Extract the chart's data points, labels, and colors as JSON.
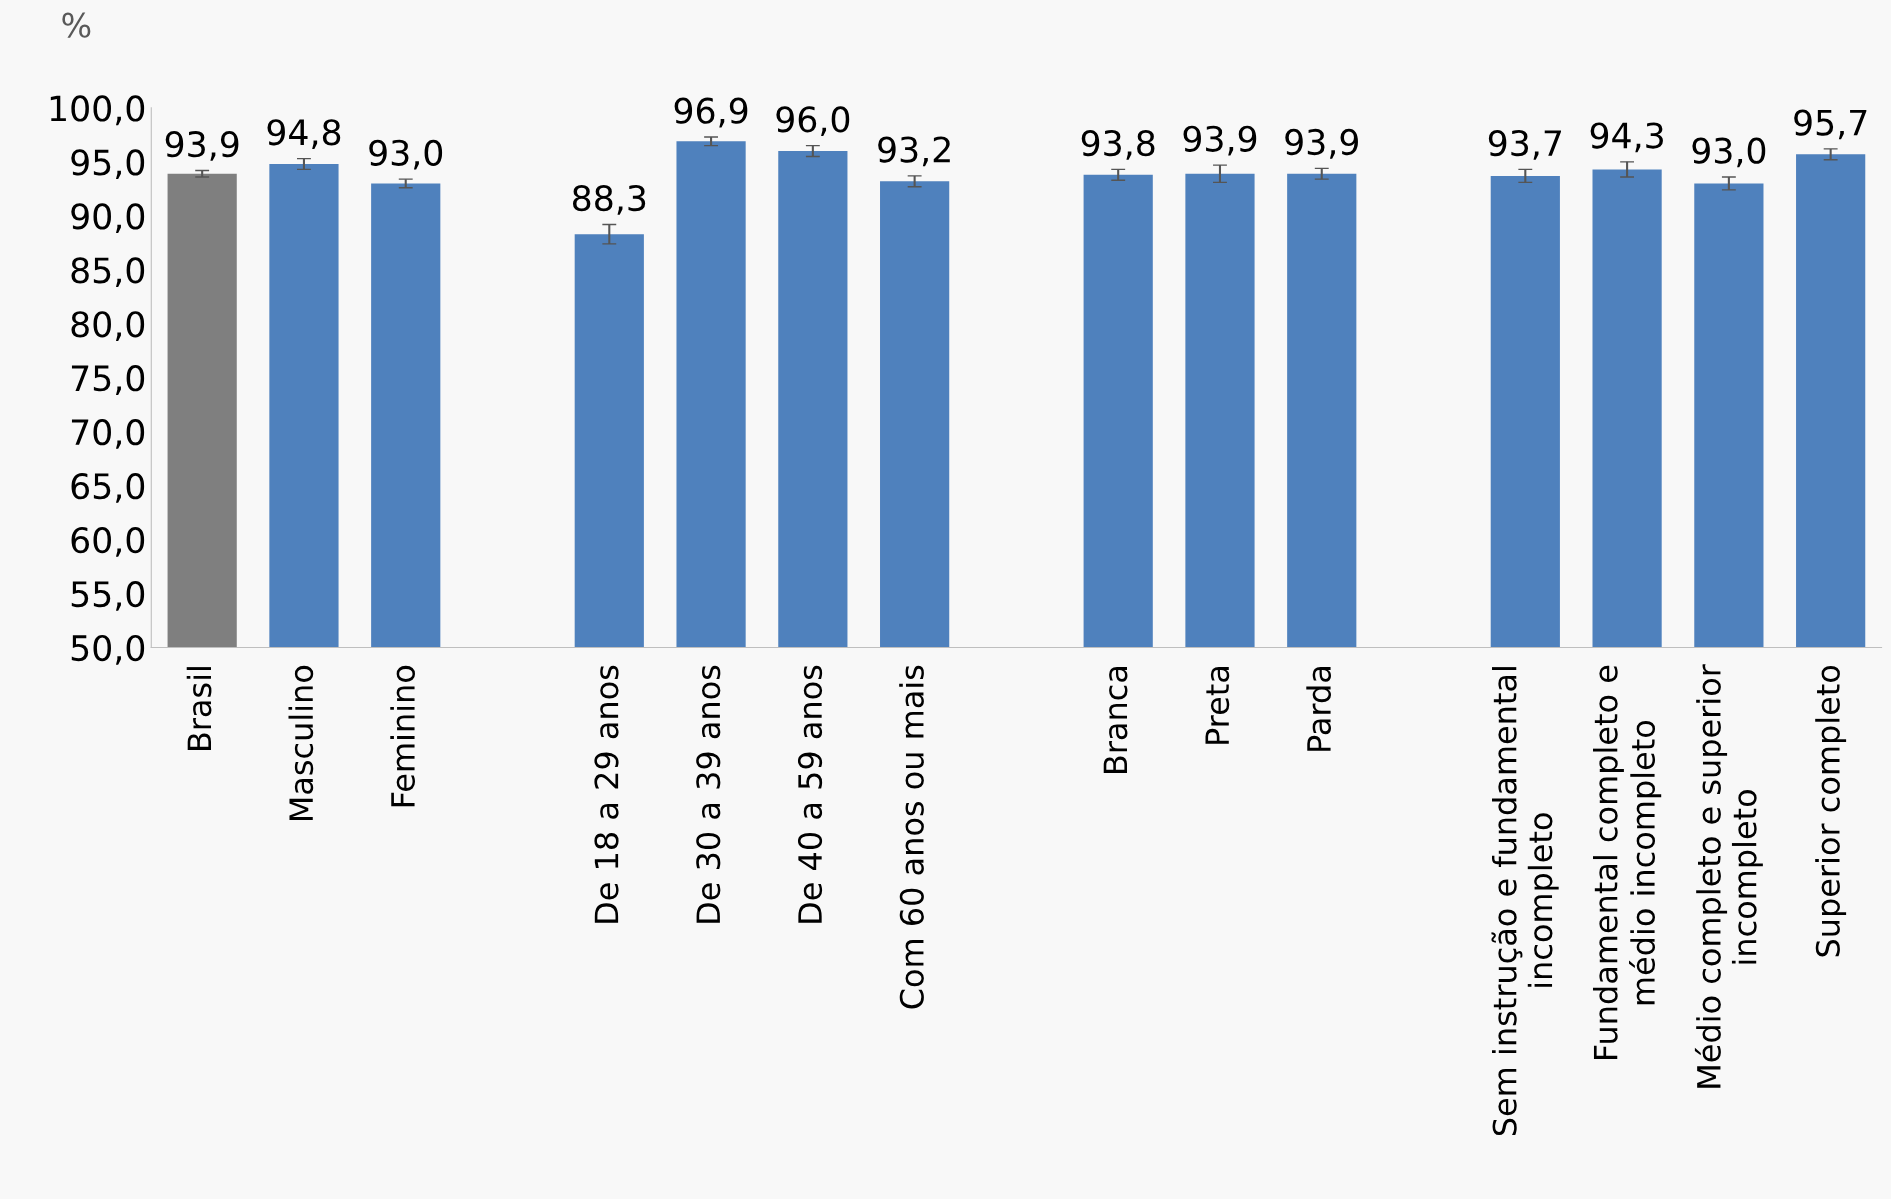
{
  "chart_data": {
    "type": "bar",
    "ylabel": "%",
    "categories": [
      "Brasil",
      "Masculino",
      "Feminino",
      null,
      "De 18 a 29 anos",
      "De 30 a 39 anos",
      "De 40 a 59 anos",
      "Com 60 anos ou mais",
      null,
      "Branca",
      "Preta",
      "Parda",
      null,
      "Sem instrução e fundamental\nincompleto",
      "Fundamental completo e\nmédio incompleto",
      "Médio completo e superior\nincompleto",
      "Superior completo"
    ],
    "values": [
      93.9,
      94.8,
      93.0,
      null,
      88.3,
      96.9,
      96.0,
      93.2,
      null,
      93.8,
      93.9,
      93.9,
      null,
      93.7,
      94.3,
      93.0,
      95.7
    ],
    "errors": [
      0.3,
      0.5,
      0.4,
      null,
      0.9,
      0.4,
      0.5,
      0.5,
      null,
      0.5,
      0.8,
      0.5,
      null,
      0.6,
      0.7,
      0.6,
      0.5
    ],
    "colors": [
      "#7f7f7f",
      "#4f81bd",
      "#4f81bd",
      null,
      "#4f81bd",
      "#4f81bd",
      "#4f81bd",
      "#4f81bd",
      null,
      "#4f81bd",
      "#4f81bd",
      "#4f81bd",
      null,
      "#4f81bd",
      "#4f81bd",
      "#4f81bd",
      "#4f81bd"
    ],
    "ylim": [
      50,
      100
    ],
    "yticks": [
      {
        "value": 50,
        "label": "50,0"
      },
      {
        "value": 55,
        "label": "55,0"
      },
      {
        "value": 60,
        "label": "60,0"
      },
      {
        "value": 65,
        "label": "65,0"
      },
      {
        "value": 70,
        "label": "70,0"
      },
      {
        "value": 75,
        "label": "75,0"
      },
      {
        "value": 80,
        "label": "80,0"
      },
      {
        "value": 85,
        "label": "85,0"
      },
      {
        "value": 90,
        "label": "90,0"
      },
      {
        "value": 95,
        "label": "95,0"
      },
      {
        "value": 100,
        "label": "100,0"
      }
    ],
    "value_labels": [
      "93,9",
      "94,8",
      "93,0",
      null,
      "88,3",
      "96,9",
      "96,0",
      "93,2",
      null,
      "93,8",
      "93,9",
      "93,9",
      null,
      "93,7",
      "94,3",
      "93,0",
      "95,7"
    ],
    "grid": false
  }
}
